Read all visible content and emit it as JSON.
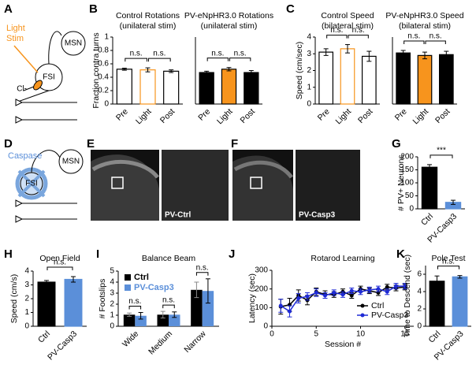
{
  "panel_labels": [
    "A",
    "B",
    "C",
    "D",
    "E",
    "F",
    "G",
    "H",
    "I",
    "J",
    "K"
  ],
  "diagram_a": {
    "light_stim": [
      "Light",
      "Stim"
    ],
    "ion": "Cl-",
    "fsi": "FSI",
    "msn": "MSN"
  },
  "diagram_d": {
    "caspase": "Caspase",
    "fsi": "FSI",
    "msn": "MSN"
  },
  "images": {
    "e_label": "PV-Ctrl",
    "f_label": "PV-Casp3"
  },
  "chart_data": [
    {
      "type": "bar",
      "title": "Control Rotations",
      "subtitle": "(unilateral stim)",
      "ylabel": "Fraction contra turns",
      "categories": [
        "Pre",
        "Light",
        "Post"
      ],
      "values": [
        0.52,
        0.51,
        0.49
      ],
      "errors": [
        0.015,
        0.03,
        0.02
      ],
      "colors": [
        "#ffffff",
        "#ffffff",
        "#ffffff"
      ],
      "edge_colors": [
        "#000000",
        "#f7941d",
        "#000000"
      ],
      "ylim": [
        0,
        1
      ],
      "yticks": [
        0,
        0.2,
        0.4,
        0.6,
        0.8,
        1
      ],
      "xtick_rotation": 45,
      "annotations": [
        "n.s.",
        "n.s."
      ]
    },
    {
      "type": "bar",
      "title": "PV-eNpHR3.0 Rotations",
      "subtitle": "(unilateral stim)",
      "categories": [
        "Pre",
        "Light",
        "Post"
      ],
      "values": [
        0.47,
        0.52,
        0.47
      ],
      "errors": [
        0.02,
        0.025,
        0.03
      ],
      "colors": [
        "#000000",
        "#f7941d",
        "#000000"
      ],
      "edge_colors": [
        "#000000",
        "#000000",
        "#000000"
      ],
      "ylim": [
        0,
        1
      ],
      "xtick_rotation": 45,
      "annotations": [
        "n.s.",
        "n.s."
      ]
    },
    {
      "type": "bar",
      "title": "Control Speed",
      "subtitle": "(bilateral stim)",
      "ylabel": "Speed (cm/sec)",
      "categories": [
        "Pre",
        "Light",
        "Post"
      ],
      "values": [
        3.1,
        3.3,
        2.85
      ],
      "errors": [
        0.2,
        0.25,
        0.3
      ],
      "colors": [
        "#ffffff",
        "#ffffff",
        "#ffffff"
      ],
      "edge_colors": [
        "#000000",
        "#f7941d",
        "#000000"
      ],
      "ylim": [
        0,
        4
      ],
      "yticks": [
        0,
        1,
        2,
        3,
        4
      ],
      "xtick_rotation": 45,
      "annotations": [
        "n.s.",
        "n.s."
      ]
    },
    {
      "type": "bar",
      "title": "PV-eNpHR3.0 Speed",
      "subtitle": "(bilateral stim)",
      "categories": [
        "Pre",
        "Light",
        "Post"
      ],
      "values": [
        3.05,
        2.9,
        2.95
      ],
      "errors": [
        0.15,
        0.2,
        0.2
      ],
      "colors": [
        "#000000",
        "#f7941d",
        "#000000"
      ],
      "edge_colors": [
        "#000000",
        "#000000",
        "#000000"
      ],
      "ylim": [
        0,
        4
      ],
      "xtick_rotation": 45,
      "annotations": [
        "n.s.",
        "n.s."
      ]
    },
    {
      "type": "bar",
      "ylabel": "# PV+ Neurons",
      "categories": [
        "Ctrl",
        "PV-Casp3"
      ],
      "values": [
        160,
        25
      ],
      "errors": [
        10,
        8
      ],
      "colors": [
        "#000000",
        "#5b8fd9"
      ],
      "edge_colors": [
        "#000000",
        "#5b8fd9"
      ],
      "ylim": [
        0,
        200
      ],
      "yticks": [
        0,
        50,
        100,
        150,
        200
      ],
      "xtick_rotation": 45,
      "annotations": [
        "***"
      ]
    },
    {
      "type": "bar",
      "title": "Open Field",
      "ylabel": "Speed (cm/s)",
      "categories": [
        "Ctrl",
        "PV-Casp3"
      ],
      "values": [
        3.2,
        3.4
      ],
      "errors": [
        0.12,
        0.2
      ],
      "colors": [
        "#000000",
        "#5b8fd9"
      ],
      "edge_colors": [
        "#000000",
        "#5b8fd9"
      ],
      "ylim": [
        0,
        4
      ],
      "yticks": [
        0,
        1,
        2,
        3,
        4
      ],
      "xtick_rotation": 45,
      "annotations": [
        "n.s."
      ]
    },
    {
      "type": "bar",
      "title": "Balance Beam",
      "ylabel": "# Footslips",
      "categories": [
        "Wide",
        "Medium",
        "Narrow"
      ],
      "series": [
        {
          "name": "Ctrl",
          "color": "#000000",
          "values": [
            1.05,
            1.05,
            3.3
          ],
          "errors": [
            0.15,
            0.3,
            0.7
          ]
        },
        {
          "name": "PV-Casp3",
          "color": "#5b8fd9",
          "values": [
            0.95,
            1.05,
            3.2
          ],
          "errors": [
            0.3,
            0.25,
            1.1
          ]
        }
      ],
      "ylim": [
        0,
        5
      ],
      "yticks": [
        0,
        1,
        2,
        3,
        4,
        5
      ],
      "xtick_rotation": 45,
      "legend": "upper left",
      "annotations": [
        "n.s.",
        "n.s.",
        "n.s."
      ]
    },
    {
      "type": "line",
      "title": "Rotarod Learning",
      "ylabel": "Latency (sec)",
      "xlabel": "Session #",
      "x": [
        1,
        2,
        3,
        4,
        5,
        6,
        7,
        8,
        9,
        10,
        11,
        12,
        13,
        14,
        15
      ],
      "series": [
        {
          "name": "Ctrl",
          "color": "#000000",
          "values": [
            105,
            115,
            165,
            140,
            185,
            170,
            170,
            185,
            165,
            200,
            190,
            180,
            210,
            205,
            210
          ],
          "errors": [
            40,
            35,
            30,
            25,
            20,
            20,
            15,
            15,
            15,
            15,
            15,
            15,
            15,
            15,
            15
          ]
        },
        {
          "name": "PV-Casp3",
          "color": "#1f2bd6",
          "values": [
            110,
            80,
            150,
            160,
            180,
            165,
            180,
            170,
            190,
            185,
            195,
            200,
            185,
            215,
            215
          ],
          "errors": [
            35,
            30,
            25,
            20,
            20,
            15,
            15,
            15,
            15,
            15,
            15,
            15,
            15,
            15,
            15
          ]
        }
      ],
      "xlim": [
        0,
        16
      ],
      "xticks": [
        0,
        5,
        10,
        15
      ],
      "ylim": [
        0,
        300
      ],
      "yticks": [
        0,
        100,
        200,
        300
      ],
      "legend": "lower right"
    },
    {
      "type": "bar",
      "title": "Pole Test",
      "ylabel": "Time to Descend (sec)",
      "categories": [
        "Ctrl",
        "PV-Casp3"
      ],
      "values": [
        5.2,
        5.7
      ],
      "errors": [
        0.6,
        0.15
      ],
      "colors": [
        "#000000",
        "#5b8fd9"
      ],
      "edge_colors": [
        "#000000",
        "#5b8fd9"
      ],
      "ylim": [
        0,
        7
      ],
      "yticks": [
        0,
        2,
        4,
        6
      ],
      "xtick_rotation": 45,
      "annotations": [
        "n.s."
      ]
    }
  ]
}
